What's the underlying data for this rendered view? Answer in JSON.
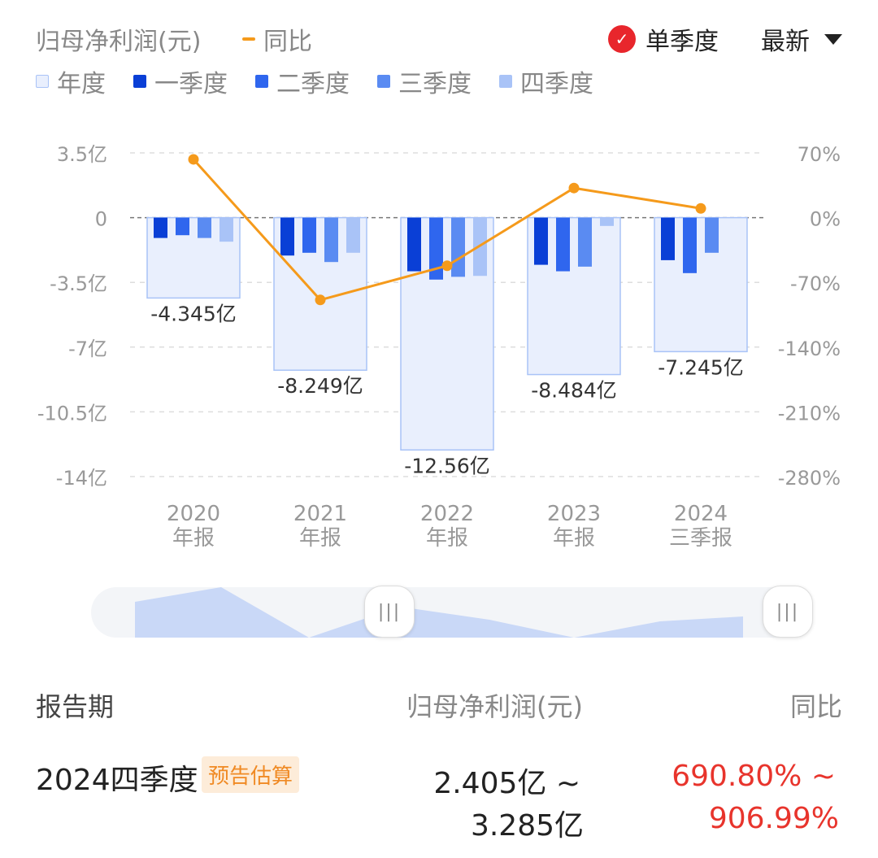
{
  "header": {
    "legend_title": "归母净利润(元)",
    "yoy_label": "同比",
    "mode_label": "单季度",
    "mode_check_icon": "check-circle-icon",
    "latest_label": "最新"
  },
  "legend": [
    {
      "label": "年度",
      "color": "#e9effd"
    },
    {
      "label": "一季度",
      "color": "#0a3fd6"
    },
    {
      "label": "二季度",
      "color": "#2f66ee"
    },
    {
      "label": "三季度",
      "color": "#5a8bf2"
    },
    {
      "label": "四季度",
      "color": "#a9c3f7"
    }
  ],
  "colors": {
    "annual_fill": "#e9effd",
    "annual_stroke": "#a9c3f7",
    "line": "#f59a1b",
    "negative": "#e8342c"
  },
  "chart_data": {
    "type": "bar",
    "categories": [
      [
        "2020",
        "年报"
      ],
      [
        "2021",
        "年报"
      ],
      [
        "2022",
        "年报"
      ],
      [
        "2023",
        "年报"
      ],
      [
        "2024",
        "三季报"
      ]
    ],
    "left_axis": {
      "ticks": [
        "3.5亿",
        "0",
        "-3.5亿",
        "-7亿",
        "-10.5亿",
        "-14亿"
      ],
      "values": [
        3.5,
        0,
        -3.5,
        -7,
        -10.5,
        -14
      ],
      "unit": "亿"
    },
    "right_axis": {
      "ticks": [
        "70%",
        "0%",
        "-70%",
        "-140%",
        "-210%",
        "-280%"
      ],
      "values": [
        70,
        0,
        -70,
        -140,
        -210,
        -280
      ]
    },
    "annual": {
      "values": [
        -4.345,
        -8.249,
        -12.56,
        -8.484,
        -7.245
      ],
      "labels": [
        "-4.345亿",
        "-8.249亿",
        "-12.56亿",
        "-8.484亿",
        "-7.245亿"
      ]
    },
    "series": [
      {
        "name": "一季度",
        "values": [
          -1.1,
          -2.05,
          -2.9,
          -2.55,
          -2.3
        ]
      },
      {
        "name": "二季度",
        "values": [
          -0.95,
          -1.9,
          -3.35,
          -2.9,
          -3.0
        ]
      },
      {
        "name": "三季度",
        "values": [
          -1.1,
          -2.4,
          -3.2,
          -2.65,
          -1.9
        ]
      },
      {
        "name": "四季度",
        "values": [
          -1.3,
          -1.9,
          -3.15,
          -0.45,
          null
        ]
      }
    ],
    "yoy": {
      "name": "同比",
      "values": [
        63,
        -89,
        -52,
        32,
        10
      ]
    },
    "grid": true
  },
  "table": {
    "headers": [
      "报告期",
      "归母净利润(元)",
      "同比"
    ],
    "row": {
      "period": "2024四季度",
      "badge": "预告估算",
      "profit_low": "2.405亿 ~",
      "profit_high": "3.285亿",
      "yoy_low": "690.80% ~",
      "yoy_high": "906.99%"
    }
  }
}
